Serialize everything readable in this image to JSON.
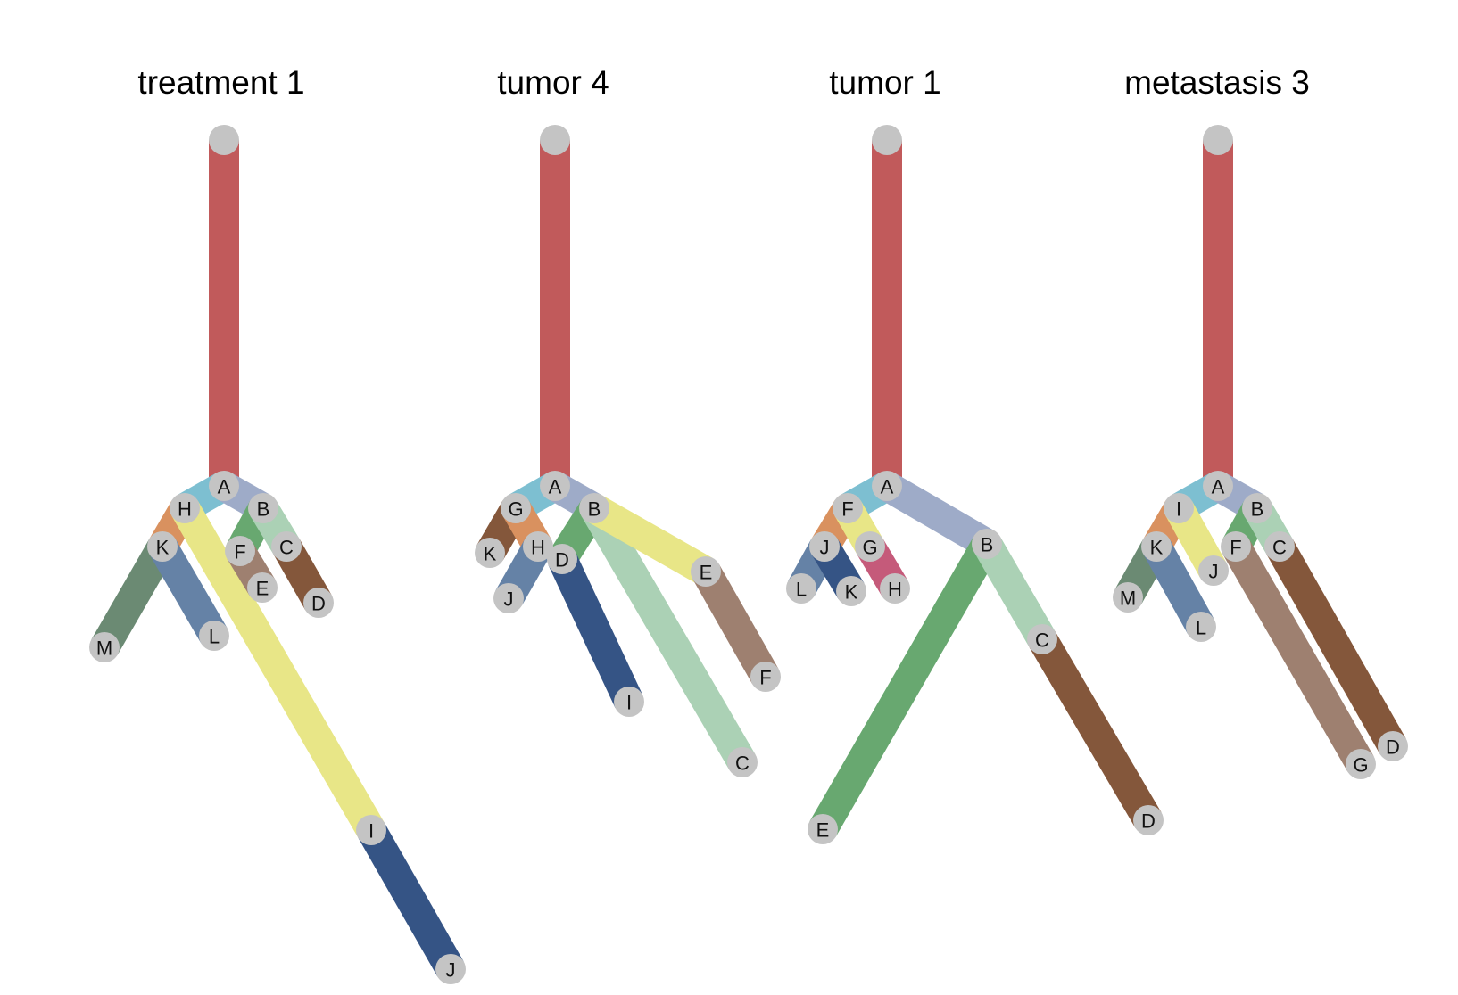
{
  "colors": {
    "node": "#c4c4c4",
    "root_edge": "#c15a5b"
  },
  "trees": [
    {
      "title": "treatment 1",
      "nodes": [
        {
          "id": "root",
          "label": ""
        },
        {
          "id": "A",
          "label": "A"
        },
        {
          "id": "H",
          "label": "H"
        },
        {
          "id": "B",
          "label": "B"
        },
        {
          "id": "K",
          "label": "K"
        },
        {
          "id": "F",
          "label": "F"
        },
        {
          "id": "C",
          "label": "C"
        },
        {
          "id": "E",
          "label": "E"
        },
        {
          "id": "D",
          "label": "D"
        },
        {
          "id": "M",
          "label": "M"
        },
        {
          "id": "L",
          "label": "L"
        },
        {
          "id": "I",
          "label": "I"
        },
        {
          "id": "J",
          "label": "J"
        }
      ],
      "edges": [
        {
          "from": "root",
          "to": "A",
          "color": "#c15a5b"
        },
        {
          "from": "A",
          "to": "H",
          "color": "#7dbfd1"
        },
        {
          "from": "A",
          "to": "B",
          "color": "#9eabc8"
        },
        {
          "from": "H",
          "to": "K",
          "color": "#d9915f"
        },
        {
          "from": "H",
          "to": "I",
          "color": "#e8e687"
        },
        {
          "from": "K",
          "to": "M",
          "color": "#6b8a73"
        },
        {
          "from": "K",
          "to": "L",
          "color": "#6582a6"
        },
        {
          "from": "B",
          "to": "F",
          "color": "#68a870"
        },
        {
          "from": "B",
          "to": "C",
          "color": "#abd1b5"
        },
        {
          "from": "F",
          "to": "E",
          "color": "#9e8070"
        },
        {
          "from": "C",
          "to": "D",
          "color": "#84573b"
        },
        {
          "from": "I",
          "to": "J",
          "color": "#355485"
        }
      ]
    },
    {
      "title": "tumor 4",
      "nodes": [
        {
          "id": "root",
          "label": ""
        },
        {
          "id": "A",
          "label": "A"
        },
        {
          "id": "G",
          "label": "G"
        },
        {
          "id": "B",
          "label": "B"
        },
        {
          "id": "K",
          "label": "K"
        },
        {
          "id": "H",
          "label": "H"
        },
        {
          "id": "D",
          "label": "D"
        },
        {
          "id": "E",
          "label": "E"
        },
        {
          "id": "J",
          "label": "J"
        },
        {
          "id": "I",
          "label": "I"
        },
        {
          "id": "F",
          "label": "F"
        },
        {
          "id": "C",
          "label": "C"
        }
      ],
      "edges": [
        {
          "from": "root",
          "to": "A",
          "color": "#c15a5b"
        },
        {
          "from": "A",
          "to": "G",
          "color": "#7dbfd1"
        },
        {
          "from": "A",
          "to": "B",
          "color": "#9eabc8"
        },
        {
          "from": "G",
          "to": "K",
          "color": "#84573b"
        },
        {
          "from": "G",
          "to": "H",
          "color": "#d9915f"
        },
        {
          "from": "H",
          "to": "J",
          "color": "#6582a6"
        },
        {
          "from": "B",
          "to": "D",
          "color": "#68a870"
        },
        {
          "from": "D",
          "to": "I",
          "color": "#355485"
        },
        {
          "from": "B",
          "to": "C",
          "color": "#abd1b5"
        },
        {
          "from": "B",
          "to": "E",
          "color": "#e8e687"
        },
        {
          "from": "E",
          "to": "F",
          "color": "#9e8070"
        }
      ]
    },
    {
      "title": "tumor 1",
      "nodes": [
        {
          "id": "root",
          "label": ""
        },
        {
          "id": "A",
          "label": "A"
        },
        {
          "id": "F",
          "label": "F"
        },
        {
          "id": "B",
          "label": "B"
        },
        {
          "id": "J",
          "label": "J"
        },
        {
          "id": "G",
          "label": "G"
        },
        {
          "id": "L",
          "label": "L"
        },
        {
          "id": "K",
          "label": "K"
        },
        {
          "id": "H",
          "label": "H"
        },
        {
          "id": "C",
          "label": "C"
        },
        {
          "id": "E",
          "label": "E"
        },
        {
          "id": "D",
          "label": "D"
        }
      ],
      "edges": [
        {
          "from": "root",
          "to": "A",
          "color": "#c15a5b"
        },
        {
          "from": "A",
          "to": "F",
          "color": "#7dbfd1"
        },
        {
          "from": "A",
          "to": "B",
          "color": "#9eabc8"
        },
        {
          "from": "F",
          "to": "J",
          "color": "#d9915f"
        },
        {
          "from": "F",
          "to": "G",
          "color": "#e8e687"
        },
        {
          "from": "J",
          "to": "L",
          "color": "#6582a6"
        },
        {
          "from": "J",
          "to": "K",
          "color": "#355485"
        },
        {
          "from": "G",
          "to": "H",
          "color": "#c55a7a"
        },
        {
          "from": "B",
          "to": "E",
          "color": "#68a870"
        },
        {
          "from": "B",
          "to": "C",
          "color": "#abd1b5"
        },
        {
          "from": "C",
          "to": "D",
          "color": "#84573b"
        }
      ]
    },
    {
      "title": "metastasis 3",
      "nodes": [
        {
          "id": "root",
          "label": ""
        },
        {
          "id": "A",
          "label": "A"
        },
        {
          "id": "I",
          "label": "I"
        },
        {
          "id": "B",
          "label": "B"
        },
        {
          "id": "K",
          "label": "K"
        },
        {
          "id": "J",
          "label": "J"
        },
        {
          "id": "F",
          "label": "F"
        },
        {
          "id": "C",
          "label": "C"
        },
        {
          "id": "M",
          "label": "M"
        },
        {
          "id": "L",
          "label": "L"
        },
        {
          "id": "G",
          "label": "G"
        },
        {
          "id": "D",
          "label": "D"
        }
      ],
      "edges": [
        {
          "from": "root",
          "to": "A",
          "color": "#c15a5b"
        },
        {
          "from": "A",
          "to": "I",
          "color": "#7dbfd1"
        },
        {
          "from": "A",
          "to": "B",
          "color": "#9eabc8"
        },
        {
          "from": "I",
          "to": "K",
          "color": "#d9915f"
        },
        {
          "from": "I",
          "to": "J",
          "color": "#e8e687"
        },
        {
          "from": "K",
          "to": "M",
          "color": "#6b8a73"
        },
        {
          "from": "K",
          "to": "L",
          "color": "#6582a6"
        },
        {
          "from": "B",
          "to": "F",
          "color": "#68a870"
        },
        {
          "from": "B",
          "to": "C",
          "color": "#abd1b5"
        },
        {
          "from": "F",
          "to": "G",
          "color": "#9e8070"
        },
        {
          "from": "C",
          "to": "D",
          "color": "#84573b"
        }
      ]
    }
  ]
}
